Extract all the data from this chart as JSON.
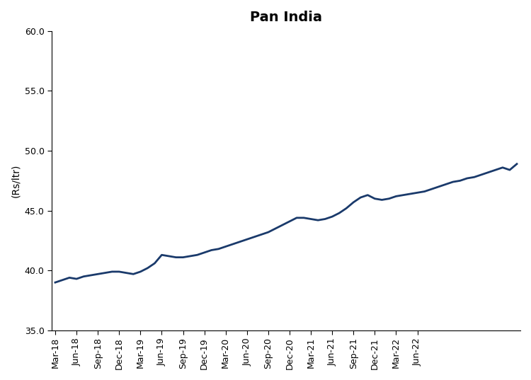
{
  "title": "Pan India",
  "ylabel": "(Rs/ltr)",
  "ylim": [
    35.0,
    60.0
  ],
  "yticks": [
    35.0,
    40.0,
    45.0,
    50.0,
    55.0,
    60.0
  ],
  "line_color": "#1a3a6b",
  "line_width": 2.0,
  "background_color": "#ffffff",
  "x_labels": [
    "Mar-18",
    "Jun-18",
    "Sep-18",
    "Dec-18",
    "Mar-19",
    "Jun-19",
    "Sep-19",
    "Dec-19",
    "Mar-20",
    "Jun-20",
    "Sep-20",
    "Dec-20",
    "Mar-21",
    "Jun-21",
    "Sep-21",
    "Dec-21",
    "Mar-22",
    "Jun-22"
  ],
  "values": [
    39.0,
    39.2,
    39.4,
    39.3,
    39.5,
    39.6,
    39.7,
    39.8,
    39.9,
    39.9,
    39.8,
    39.7,
    39.9,
    40.2,
    40.6,
    41.3,
    41.2,
    41.1,
    41.1,
    41.2,
    41.3,
    41.5,
    41.7,
    41.8,
    42.0,
    42.2,
    42.4,
    42.6,
    42.8,
    43.0,
    43.2,
    43.5,
    43.8,
    44.1,
    44.4,
    44.4,
    44.3,
    44.2,
    44.3,
    44.5,
    44.8,
    45.2,
    45.7,
    46.1,
    46.3,
    46.0,
    45.9,
    46.0,
    46.2,
    46.3,
    46.4,
    46.5,
    46.6,
    46.8,
    47.0,
    47.2,
    47.4,
    47.5,
    47.7,
    47.8,
    48.0,
    48.2,
    48.4,
    48.6,
    48.4,
    48.9
  ]
}
